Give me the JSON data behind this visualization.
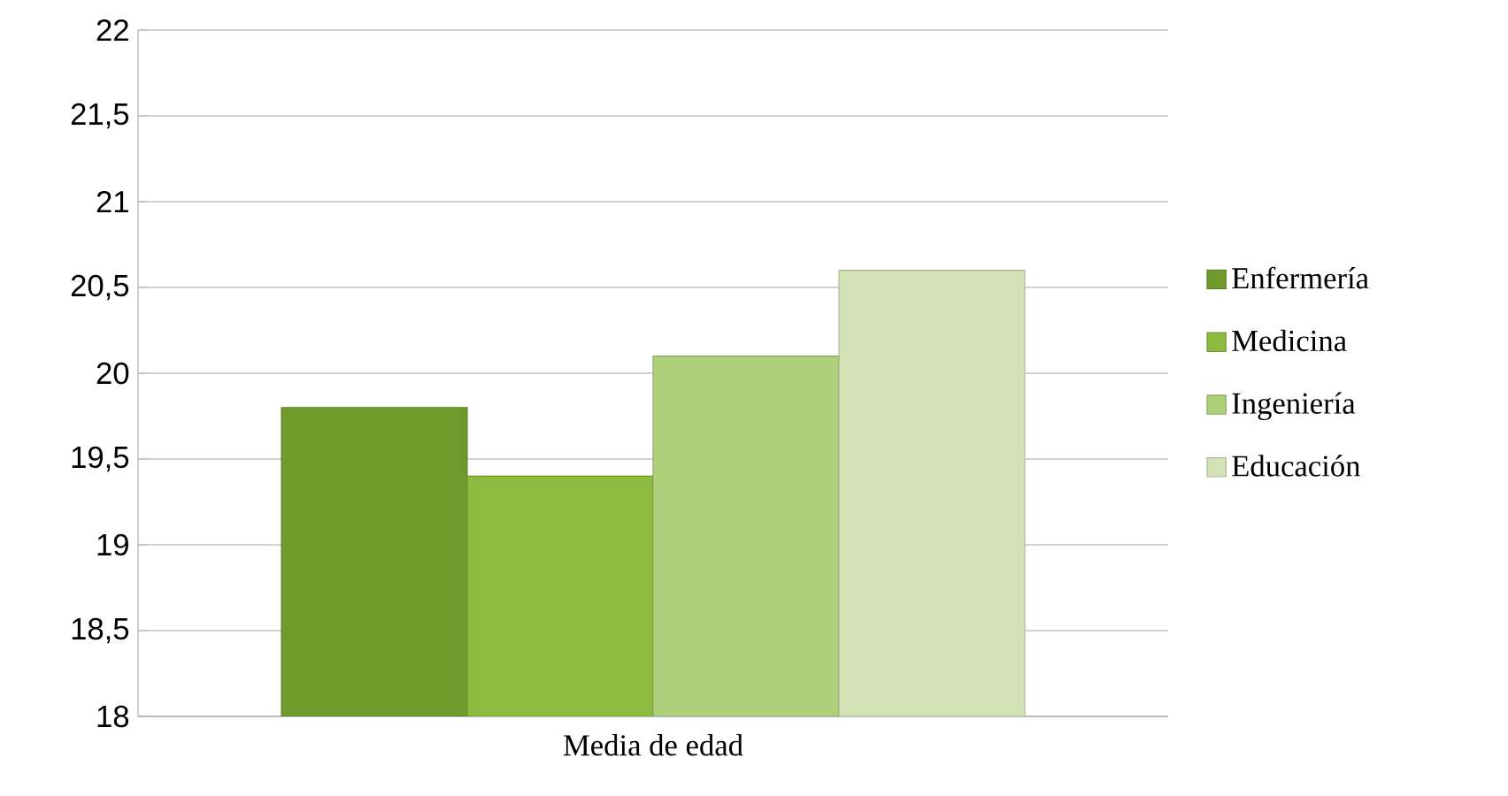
{
  "chart_data": {
    "type": "bar",
    "categories": [
      "Media de edad"
    ],
    "series": [
      {
        "name": "Enfermería",
        "color": "#6f9a2c",
        "values": [
          19.8
        ]
      },
      {
        "name": "Medicina",
        "color": "#8dbb3f",
        "values": [
          19.4
        ]
      },
      {
        "name": "Ingeniería",
        "color": "#aed07a",
        "values": [
          20.1
        ]
      },
      {
        "name": "Educación",
        "color": "#d3e3b5",
        "values": [
          20.6
        ]
      }
    ],
    "ylim": [
      18,
      22
    ],
    "yticks": [
      18,
      {
        "value": 18.5,
        "label": "18,5"
      },
      19,
      {
        "value": 19.5,
        "label": "19,5"
      },
      20,
      {
        "value": 20.5,
        "label": "20,5"
      },
      21,
      {
        "value": 21.5,
        "label": "21,5"
      },
      22
    ],
    "grid": "y",
    "legend": "right"
  }
}
